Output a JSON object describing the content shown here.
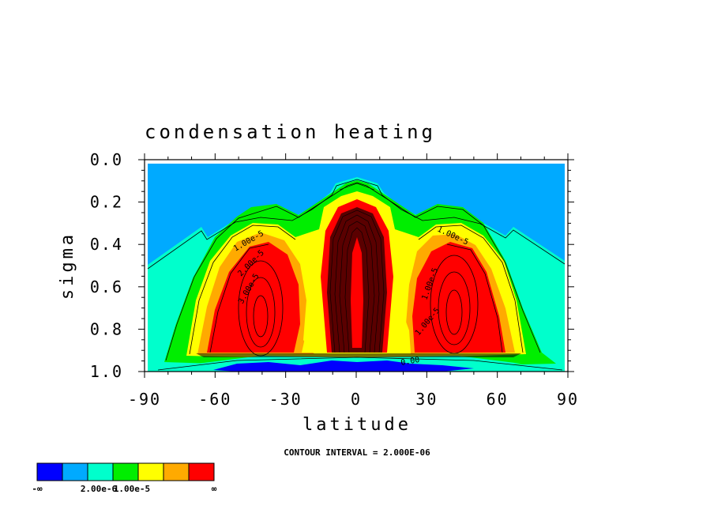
{
  "chart_data": {
    "type": "heatmap",
    "title": "condensation heating",
    "xlabel": "latitude",
    "ylabel": "sigma",
    "xlim": [
      -90,
      90
    ],
    "ylim": [
      0.0,
      1.0
    ],
    "y_inverted": true,
    "x_ticks": [
      "-90",
      "-60",
      "-30",
      "0",
      "30",
      "60",
      "90"
    ],
    "x_tick_values": [
      -90,
      -60,
      -30,
      0,
      30,
      60,
      90
    ],
    "y_ticks": [
      "0.0",
      "0.2",
      "0.4",
      "0.6",
      "0.8",
      "1.0"
    ],
    "y_tick_values": [
      0.0,
      0.2,
      0.4,
      0.6,
      0.8,
      1.0
    ],
    "contour_interval_text": "CONTOUR INTERVAL = 2.000E-06",
    "contour_labels": [
      "1.00e-5",
      "2.00e-5",
      "3.00e-5",
      "1.00e-5",
      "1.00e-5",
      "1.00e-5",
      "0.00"
    ],
    "legend": {
      "colors": [
        "#0000ff",
        "#00aaff",
        "#00ffcc",
        "#00ee00",
        "#ffff00",
        "#ffaa00",
        "#ff0000"
      ],
      "labels": [
        "-∞",
        "2.00e-6",
        "1.00e-5",
        "∞"
      ]
    },
    "colors": {
      "blue": "#0000ff",
      "sky": "#00aaff",
      "aqua": "#00ffcc",
      "green": "#00ee00",
      "yellow": "#ffff00",
      "orange": "#ffaa00",
      "red": "#ff0000"
    }
  }
}
